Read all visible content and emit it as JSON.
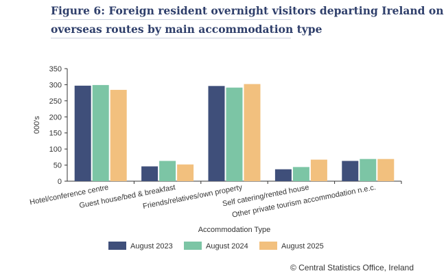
{
  "title_lines": [
    "Figure 6: Foreign resident overnight visitors departing Ireland on",
    "overseas routes by main accommodation type"
  ],
  "source": "© Central Statistics Office, Ireland",
  "colors": {
    "title": "#2f3f6b",
    "series": [
      "#3f4f7a",
      "#7cc5a5",
      "#f2c07e"
    ]
  },
  "chart_data": {
    "type": "bar",
    "title": "Figure 6: Foreign resident overnight visitors departing Ireland on overseas routes by main accommodation type",
    "xlabel": "Accommodation Type",
    "ylabel": "000's",
    "ylim": [
      0,
      350
    ],
    "yticks": [
      0,
      50,
      100,
      150,
      200,
      250,
      300,
      350
    ],
    "categories": [
      "Hotel/conference centre",
      "Guest house/bed & breakfast",
      "Friends/relatives/own property",
      "Self catering/rented house",
      "Other private tourism accommodation n.e.c."
    ],
    "series": [
      {
        "name": "August 2023",
        "values": [
          297,
          46,
          296,
          37,
          63
        ]
      },
      {
        "name": "August 2024",
        "values": [
          299,
          63,
          291,
          44,
          69
        ]
      },
      {
        "name": "August 2025",
        "values": [
          284,
          52,
          302,
          67,
          69
        ]
      }
    ],
    "legend_position": "bottom",
    "grid": false
  }
}
